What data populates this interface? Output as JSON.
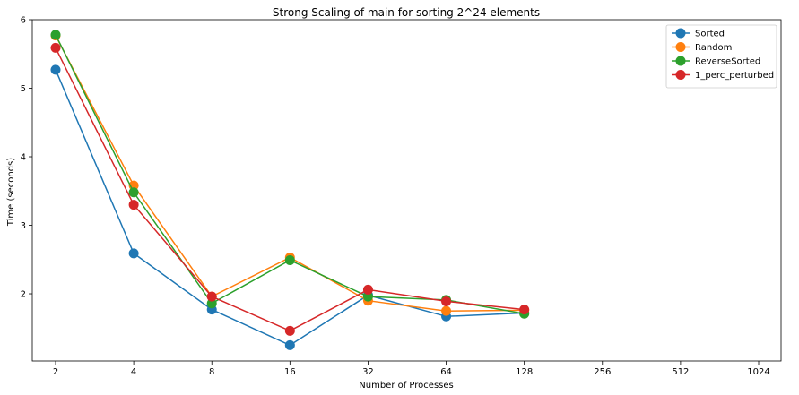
{
  "chart_data": {
    "type": "line",
    "title": "Strong Scaling of main for sorting 2^24 elements",
    "xlabel": "Number of Processes",
    "ylabel": "Time (seconds)",
    "x_scale": "log2",
    "x": [
      2,
      4,
      8,
      16,
      32,
      64,
      128
    ],
    "xticks": [
      2,
      4,
      8,
      16,
      32,
      64,
      128,
      256,
      512,
      1024
    ],
    "xtick_labels": [
      "2",
      "4",
      "8",
      "16",
      "32",
      "64",
      "128",
      "256",
      "512",
      "1024"
    ],
    "ylim": [
      1.02,
      6.0
    ],
    "yticks": [
      2,
      3,
      4,
      5,
      6
    ],
    "ytick_labels": [
      "2",
      "3",
      "4",
      "5",
      "6"
    ],
    "grid": false,
    "legend_position": "top-right",
    "series": [
      {
        "name": "Sorted",
        "color": "#1f77b4",
        "values": [
          5.27,
          2.59,
          1.77,
          1.25,
          1.98,
          1.67,
          1.72
        ]
      },
      {
        "name": "Random",
        "color": "#ff7f0e",
        "values": [
          5.77,
          3.58,
          1.96,
          2.53,
          1.9,
          1.75,
          1.76
        ]
      },
      {
        "name": "ReverseSorted",
        "color": "#2ca02c",
        "values": [
          5.78,
          3.48,
          1.86,
          2.49,
          1.96,
          1.91,
          1.71
        ]
      },
      {
        "name": "1_perc_perturbed",
        "color": "#d62728",
        "values": [
          5.59,
          3.3,
          1.96,
          1.46,
          2.06,
          1.89,
          1.77
        ]
      }
    ]
  }
}
